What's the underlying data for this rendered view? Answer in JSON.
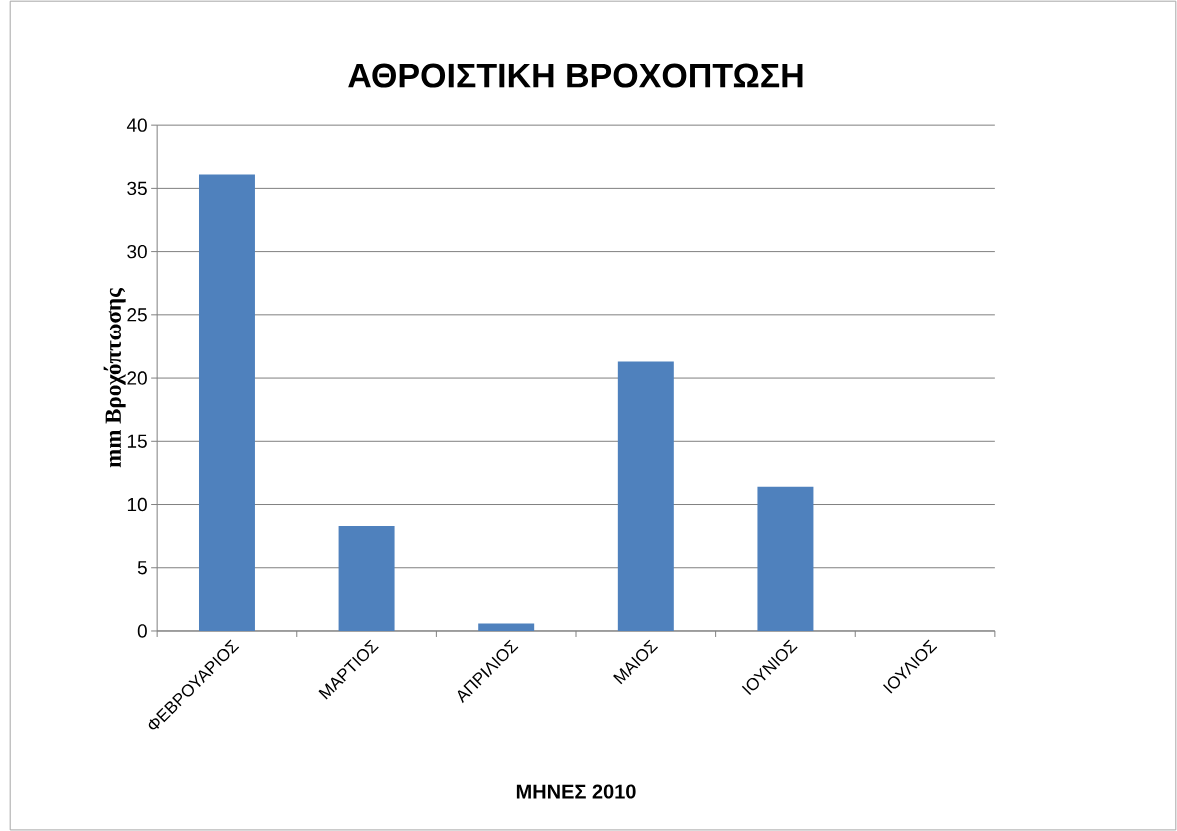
{
  "chart_data": {
    "type": "bar",
    "title": "ΑΘΡΟΙΣΤΙΚΗ ΒΡΟΧΟΠΤΩΣΗ",
    "xlabel": "ΜΗΝΕΣ 2010",
    "ylabel": "mm Βροχόπτωσης",
    "categories": [
      "ΦΕΒΡΟΥΑΡΙΟΣ",
      "ΜΑΡΤΙΟΣ",
      "ΑΠΡΙΛΙΟΣ",
      "ΜΑΙΟΣ",
      "ΙΟΥΝΙΟΣ",
      "ΙΟΥΛΙΟΣ"
    ],
    "values": [
      36.1,
      8.3,
      0.6,
      21.3,
      11.4,
      0
    ],
    "color": "#4f81bd",
    "ylim": [
      0,
      40
    ],
    "yticks": [
      0,
      5,
      10,
      15,
      20,
      25,
      30,
      35,
      40
    ],
    "grid": "y"
  }
}
